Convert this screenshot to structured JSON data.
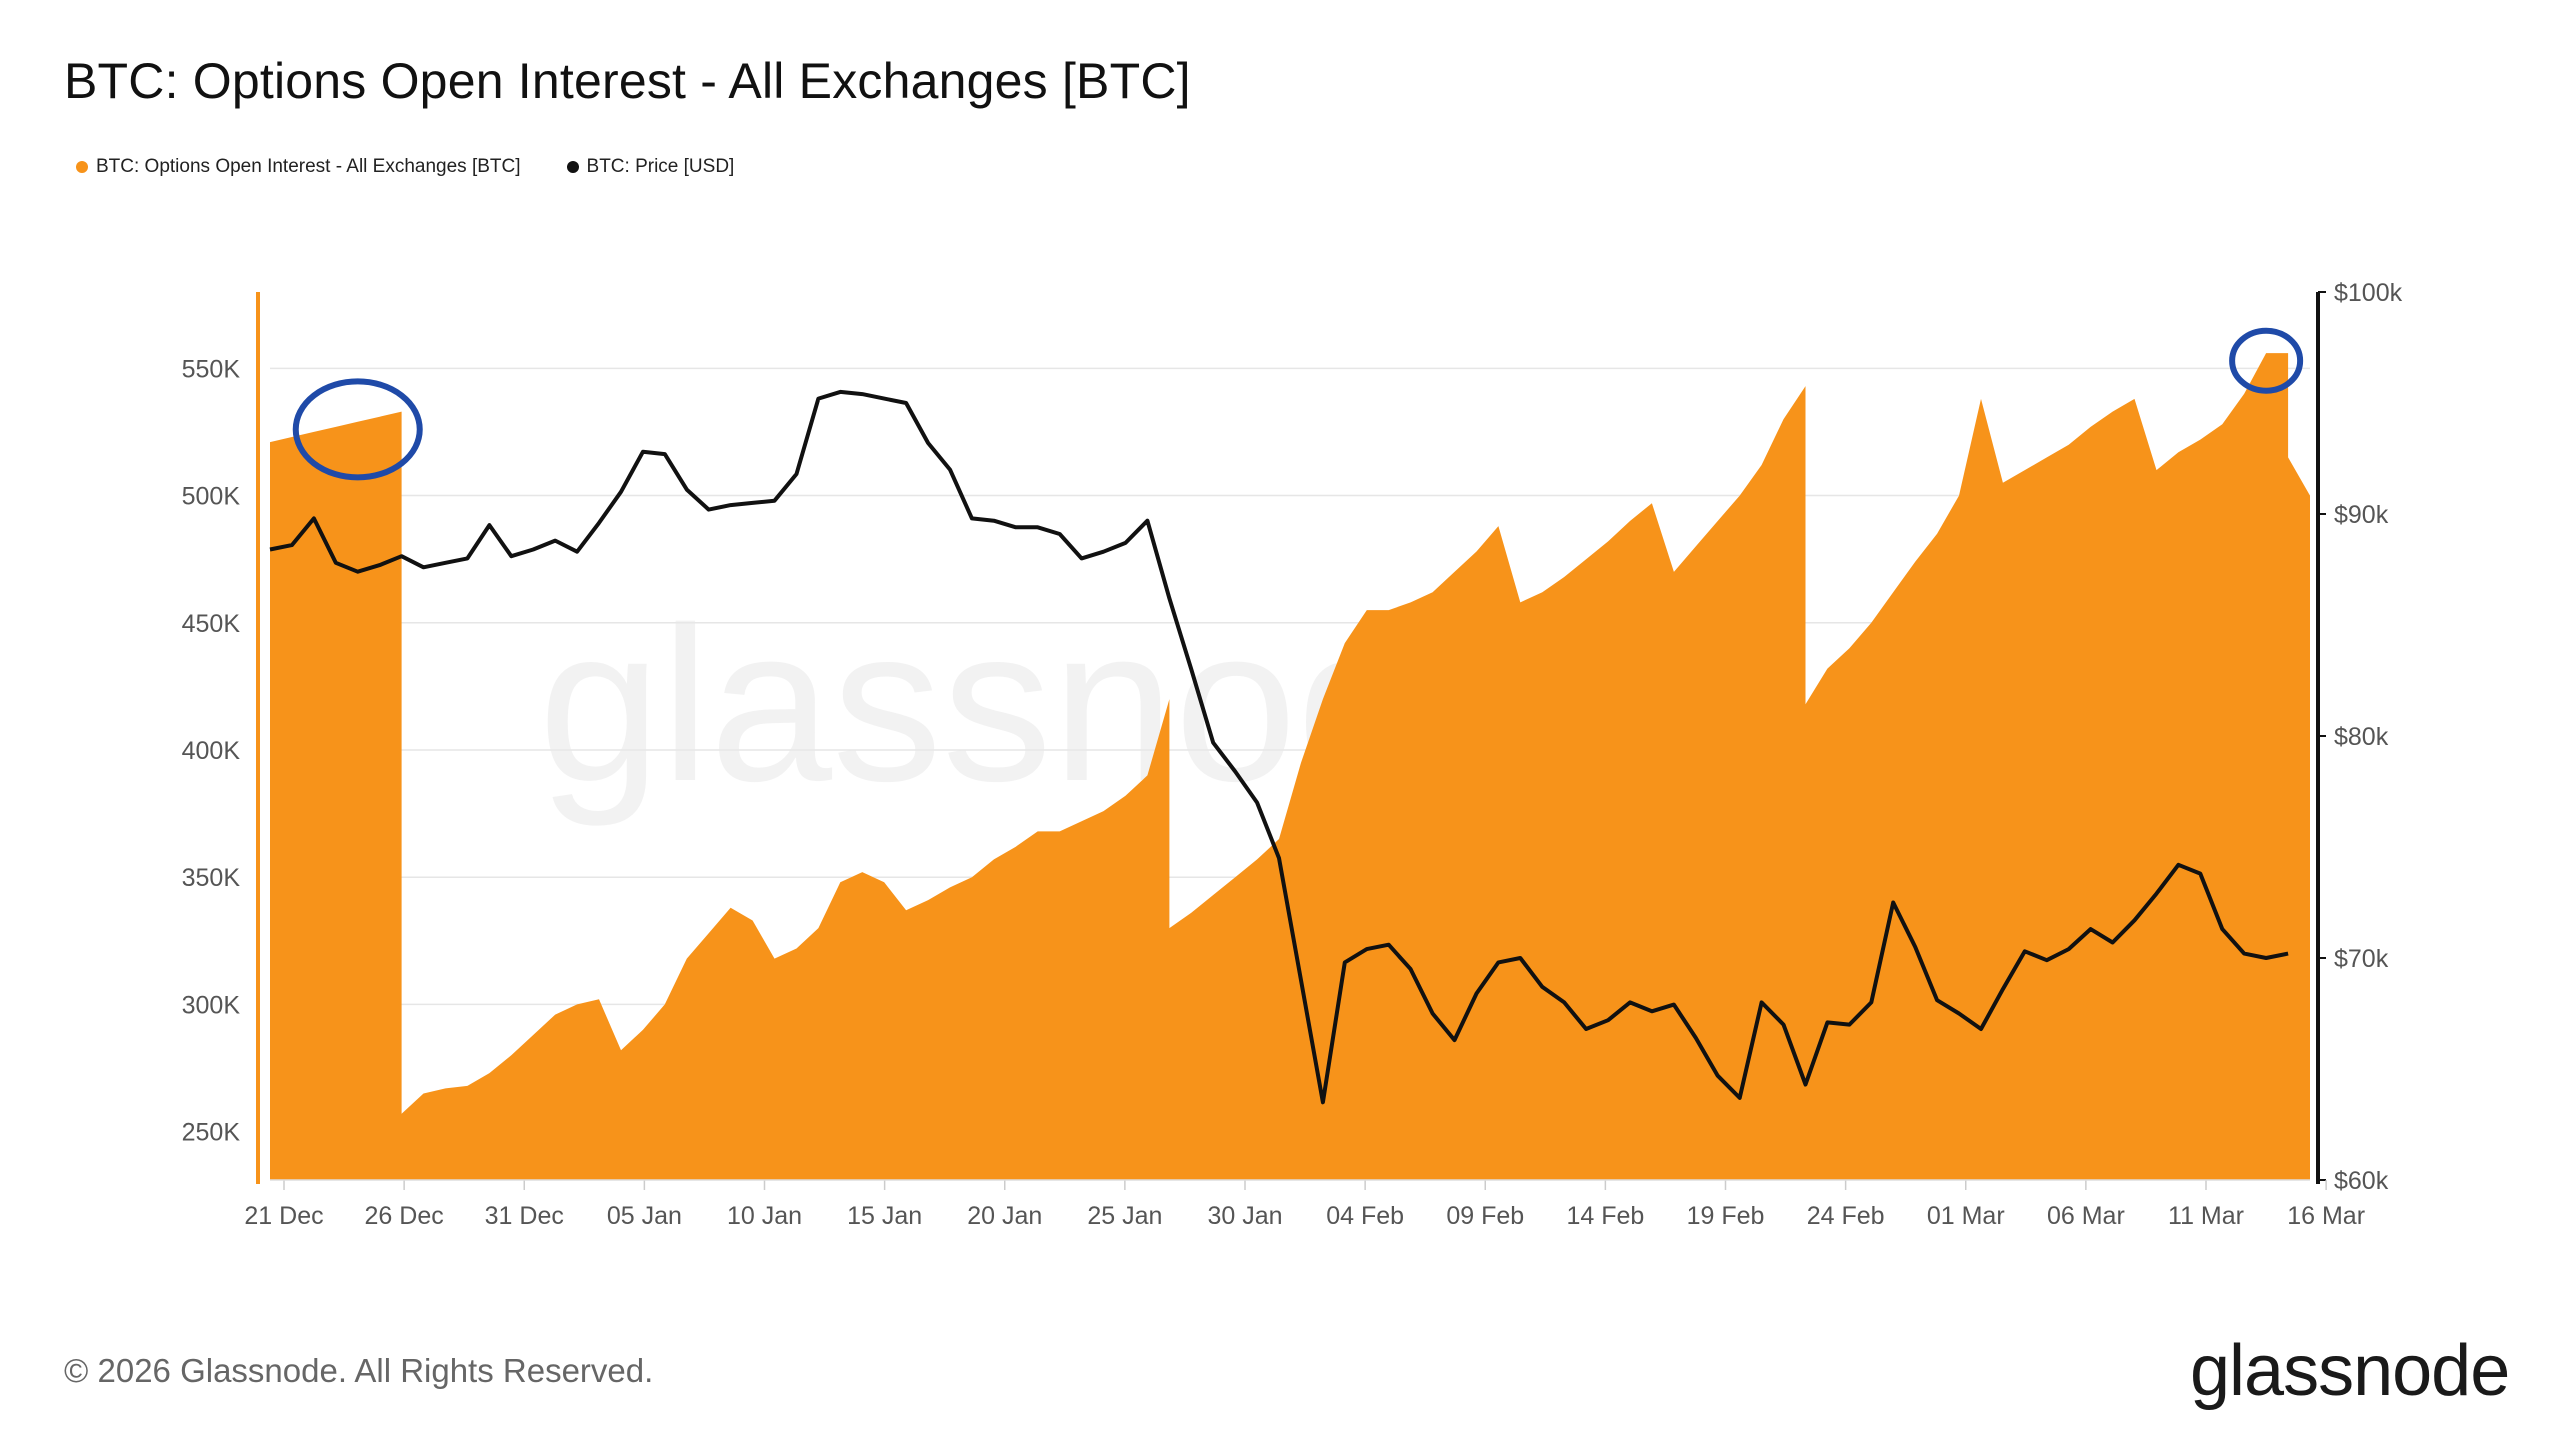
{
  "title": "BTC: Options Open Interest - All Exchanges [BTC]",
  "legend": [
    {
      "label": "BTC: Options Open Interest - All Exchanges [BTC]",
      "color": "#f7931a"
    },
    {
      "label": "BTC: Price [USD]",
      "color": "#111111"
    }
  ],
  "watermark": "glassnode",
  "footer": "© 2026 Glassnode. All Rights Reserved.",
  "logo": "glassnode",
  "colors": {
    "oi_fill": "#f7931a",
    "price_line": "#111111",
    "grid": "#e6e6e6",
    "highlight_circle": "#1f4aa8"
  },
  "chart_data": {
    "type": "area",
    "title": "BTC: Options Open Interest - All Exchanges [BTC]",
    "x_start": "2025-12-20",
    "x_ticks": [
      "21 Dec",
      "26 Dec",
      "31 Dec",
      "05 Jan",
      "10 Jan",
      "15 Jan",
      "20 Jan",
      "25 Jan",
      "30 Jan",
      "04 Feb",
      "09 Feb",
      "14 Feb",
      "19 Feb",
      "24 Feb",
      "01 Mar",
      "06 Mar",
      "11 Mar",
      "16 Mar"
    ],
    "y_left": {
      "ticks": [
        250000,
        300000,
        350000,
        400000,
        450000,
        500000,
        550000
      ],
      "tick_labels": [
        "250K",
        "300K",
        "350K",
        "400K",
        "450K",
        "500K",
        "550K"
      ],
      "range": [
        231000,
        580000
      ]
    },
    "y_right": {
      "ticks": [
        60000,
        70000,
        80000,
        90000,
        100000
      ],
      "tick_labels": [
        "$60k",
        "$70k",
        "$80k",
        "$90k",
        "$100k"
      ],
      "range": [
        60000,
        100000
      ]
    },
    "grid": true,
    "legend_position": "top-left",
    "series": [
      {
        "name": "BTC: Options Open Interest - All Exchanges [BTC]",
        "axis": "left",
        "points": [
          [
            "2025-12-20",
            521000
          ],
          [
            "2025-12-21",
            523000
          ],
          [
            "2025-12-22",
            525000
          ],
          [
            "2025-12-23",
            527000
          ],
          [
            "2025-12-24",
            529000
          ],
          [
            "2025-12-25",
            531000
          ],
          [
            "2025-12-26",
            533000
          ],
          [
            "2025-12-26",
            257000
          ],
          [
            "2025-12-27",
            265000
          ],
          [
            "2025-12-28",
            267000
          ],
          [
            "2025-12-29",
            268000
          ],
          [
            "2025-12-30",
            273000
          ],
          [
            "2025-12-31",
            280000
          ],
          [
            "2026-01-01",
            288000
          ],
          [
            "2026-01-02",
            296000
          ],
          [
            "2026-01-03",
            300000
          ],
          [
            "2026-01-04",
            302000
          ],
          [
            "2026-01-05",
            282000
          ],
          [
            "2026-01-06",
            290000
          ],
          [
            "2026-01-07",
            300000
          ],
          [
            "2026-01-08",
            318000
          ],
          [
            "2026-01-09",
            328000
          ],
          [
            "2026-01-10",
            338000
          ],
          [
            "2026-01-11",
            333000
          ],
          [
            "2026-01-12",
            318000
          ],
          [
            "2026-01-13",
            322000
          ],
          [
            "2026-01-14",
            330000
          ],
          [
            "2026-01-15",
            348000
          ],
          [
            "2026-01-16",
            352000
          ],
          [
            "2026-01-17",
            348000
          ],
          [
            "2026-01-18",
            337000
          ],
          [
            "2026-01-19",
            341000
          ],
          [
            "2026-01-20",
            346000
          ],
          [
            "2026-01-21",
            350000
          ],
          [
            "2026-01-22",
            357000
          ],
          [
            "2026-01-23",
            362000
          ],
          [
            "2026-01-24",
            368000
          ],
          [
            "2026-01-25",
            368000
          ],
          [
            "2026-01-26",
            372000
          ],
          [
            "2026-01-27",
            376000
          ],
          [
            "2026-01-28",
            382000
          ],
          [
            "2026-01-29",
            390000
          ],
          [
            "2026-01-30",
            420000
          ],
          [
            "2026-01-30",
            330000
          ],
          [
            "2026-01-31",
            336000
          ],
          [
            "2026-02-01",
            343000
          ],
          [
            "2026-02-02",
            350000
          ],
          [
            "2026-02-03",
            357000
          ],
          [
            "2026-02-04",
            365000
          ],
          [
            "2026-02-05",
            395000
          ],
          [
            "2026-02-06",
            420000
          ],
          [
            "2026-02-07",
            442000
          ],
          [
            "2026-02-08",
            455000
          ],
          [
            "2026-02-09",
            455000
          ],
          [
            "2026-02-10",
            458000
          ],
          [
            "2026-02-11",
            462000
          ],
          [
            "2026-02-12",
            470000
          ],
          [
            "2026-02-13",
            478000
          ],
          [
            "2026-02-14",
            488000
          ],
          [
            "2026-02-15",
            458000
          ],
          [
            "2026-02-16",
            462000
          ],
          [
            "2026-02-17",
            468000
          ],
          [
            "2026-02-18",
            475000
          ],
          [
            "2026-02-19",
            482000
          ],
          [
            "2026-02-20",
            490000
          ],
          [
            "2026-02-21",
            497000
          ],
          [
            "2026-02-22",
            470000
          ],
          [
            "2026-02-23",
            480000
          ],
          [
            "2026-02-24",
            490000
          ],
          [
            "2026-02-25",
            500000
          ],
          [
            "2026-02-26",
            512000
          ],
          [
            "2026-02-27",
            530000
          ],
          [
            "2026-02-28",
            543000
          ],
          [
            "2026-02-28",
            418000
          ],
          [
            "2026-03-01",
            432000
          ],
          [
            "2026-03-02",
            440000
          ],
          [
            "2026-03-03",
            450000
          ],
          [
            "2026-03-04",
            462000
          ],
          [
            "2026-03-05",
            474000
          ],
          [
            "2026-03-06",
            485000
          ],
          [
            "2026-03-07",
            500000
          ],
          [
            "2026-03-08",
            538000
          ],
          [
            "2026-03-09",
            505000
          ],
          [
            "2026-03-10",
            510000
          ],
          [
            "2026-03-11",
            515000
          ],
          [
            "2026-03-12",
            520000
          ],
          [
            "2026-03-13",
            527000
          ],
          [
            "2026-03-14",
            533000
          ],
          [
            "2026-03-15",
            538000
          ],
          [
            "2026-03-16",
            510000
          ],
          [
            "2026-03-17",
            517000
          ],
          [
            "2026-03-18",
            522000
          ],
          [
            "2026-03-19",
            528000
          ],
          [
            "2026-03-20",
            540000
          ],
          [
            "2026-03-21",
            556000
          ],
          [
            "2026-03-22",
            556000
          ],
          [
            "2026-03-22",
            515000
          ],
          [
            "2026-03-23",
            500000
          ]
        ]
      },
      {
        "name": "BTC: Price [USD]",
        "axis": "right",
        "points": [
          [
            "2025-12-20",
            88400
          ],
          [
            "2025-12-21",
            88600
          ],
          [
            "2025-12-22",
            89800
          ],
          [
            "2025-12-23",
            87800
          ],
          [
            "2025-12-24",
            87400
          ],
          [
            "2025-12-25",
            87700
          ],
          [
            "2025-12-26",
            88100
          ],
          [
            "2025-12-27",
            87600
          ],
          [
            "2025-12-28",
            87800
          ],
          [
            "2025-12-29",
            88000
          ],
          [
            "2025-12-30",
            89500
          ],
          [
            "2025-12-31",
            88100
          ],
          [
            "2026-01-01",
            88400
          ],
          [
            "2026-01-02",
            88800
          ],
          [
            "2026-01-03",
            88300
          ],
          [
            "2026-01-04",
            89600
          ],
          [
            "2026-01-05",
            91000
          ],
          [
            "2026-01-06",
            92800
          ],
          [
            "2026-01-07",
            92700
          ],
          [
            "2026-01-08",
            91100
          ],
          [
            "2026-01-09",
            90200
          ],
          [
            "2026-01-10",
            90400
          ],
          [
            "2026-01-11",
            90500
          ],
          [
            "2026-01-12",
            90600
          ],
          [
            "2026-01-13",
            91800
          ],
          [
            "2026-01-14",
            95200
          ],
          [
            "2026-01-15",
            95500
          ],
          [
            "2026-01-16",
            95400
          ],
          [
            "2026-01-17",
            95200
          ],
          [
            "2026-01-18",
            95000
          ],
          [
            "2026-01-19",
            93200
          ],
          [
            "2026-01-20",
            92000
          ],
          [
            "2026-01-21",
            89800
          ],
          [
            "2026-01-22",
            89700
          ],
          [
            "2026-01-23",
            89400
          ],
          [
            "2026-01-24",
            89400
          ],
          [
            "2026-01-25",
            89100
          ],
          [
            "2026-01-26",
            88000
          ],
          [
            "2026-01-27",
            88300
          ],
          [
            "2026-01-28",
            88700
          ],
          [
            "2026-01-29",
            89700
          ],
          [
            "2026-01-30",
            86200
          ],
          [
            "2026-01-31",
            83000
          ],
          [
            "2026-02-01",
            79700
          ],
          [
            "2026-02-02",
            78400
          ],
          [
            "2026-02-03",
            77000
          ],
          [
            "2026-02-04",
            74500
          ],
          [
            "2026-02-05",
            69000
          ],
          [
            "2026-02-06",
            63500
          ],
          [
            "2026-02-07",
            69800
          ],
          [
            "2026-02-08",
            70400
          ],
          [
            "2026-02-09",
            70600
          ],
          [
            "2026-02-10",
            69500
          ],
          [
            "2026-02-11",
            67500
          ],
          [
            "2026-02-12",
            66300
          ],
          [
            "2026-02-13",
            68400
          ],
          [
            "2026-02-14",
            69800
          ],
          [
            "2026-02-15",
            70000
          ],
          [
            "2026-02-16",
            68700
          ],
          [
            "2026-02-17",
            68000
          ],
          [
            "2026-02-18",
            66800
          ],
          [
            "2026-02-19",
            67200
          ],
          [
            "2026-02-20",
            68000
          ],
          [
            "2026-02-21",
            67600
          ],
          [
            "2026-02-22",
            67900
          ],
          [
            "2026-02-23",
            66400
          ],
          [
            "2026-02-24",
            64700
          ],
          [
            "2026-02-25",
            63700
          ],
          [
            "2026-02-26",
            68000
          ],
          [
            "2026-02-27",
            67000
          ],
          [
            "2026-02-28",
            64300
          ],
          [
            "2026-03-01",
            67100
          ],
          [
            "2026-03-02",
            67000
          ],
          [
            "2026-03-03",
            68000
          ],
          [
            "2026-03-04",
            72500
          ],
          [
            "2026-03-05",
            70500
          ],
          [
            "2026-03-06",
            68100
          ],
          [
            "2026-03-07",
            67500
          ],
          [
            "2026-03-08",
            66800
          ],
          [
            "2026-03-09",
            68600
          ],
          [
            "2026-03-10",
            70300
          ],
          [
            "2026-03-11",
            69900
          ],
          [
            "2026-03-12",
            70400
          ],
          [
            "2026-03-13",
            71300
          ],
          [
            "2026-03-14",
            70700
          ],
          [
            "2026-03-15",
            71700
          ],
          [
            "2026-03-16",
            72900
          ],
          [
            "2026-03-17",
            74200
          ],
          [
            "2026-03-18",
            73800
          ],
          [
            "2026-03-19",
            71300
          ],
          [
            "2026-03-20",
            70200
          ],
          [
            "2026-03-21",
            70000
          ],
          [
            "2026-03-22",
            70200
          ]
        ]
      }
    ],
    "annotations": [
      {
        "type": "circle",
        "at": "2025-12-24",
        "axis": "left",
        "value": 526000
      },
      {
        "type": "circle",
        "at": "2026-03-21",
        "axis": "left",
        "value": 553000
      }
    ]
  }
}
